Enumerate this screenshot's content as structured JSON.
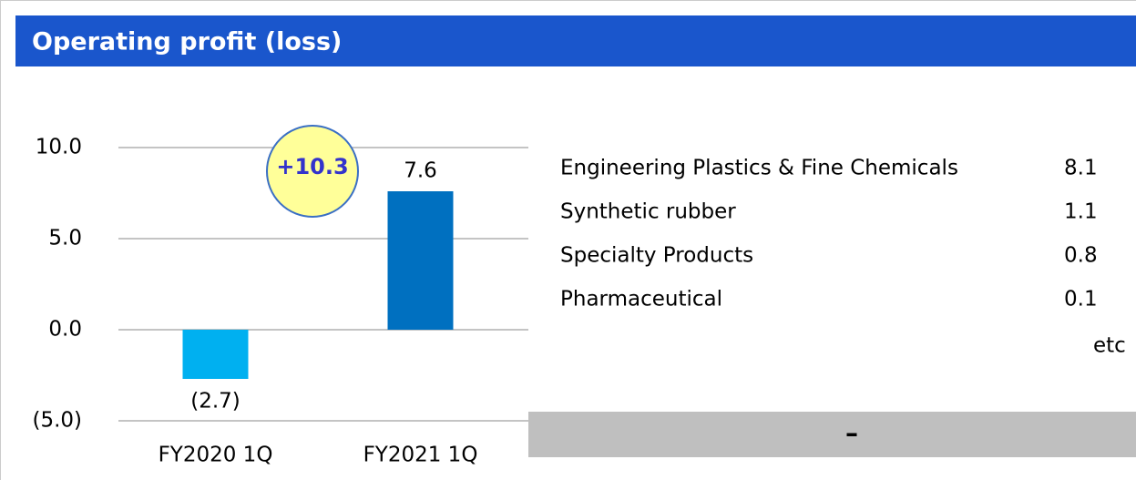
{
  "chart_data": {
    "type": "bar",
    "title": "Operating profit (loss)",
    "categories": [
      "FY2020 1Q",
      "FY2021 1Q"
    ],
    "values": [
      -2.7,
      7.6
    ],
    "value_labels": [
      "(2.7)",
      "7.6"
    ],
    "colors": [
      "#00b0f0",
      "#0070c0"
    ],
    "ylim": [
      -5,
      10
    ],
    "yticks": [
      {
        "value": -5,
        "label": "(5.0)"
      },
      {
        "value": 0,
        "label": "0.0"
      },
      {
        "value": 5,
        "label": "5.0"
      },
      {
        "value": 10,
        "label": "10.0"
      }
    ],
    "grid": true,
    "annotations": [
      "+10.3"
    ]
  },
  "breakdown": {
    "rows": [
      {
        "name": "Engineering Plastics & Fine Chemicals",
        "value": 8.1
      },
      {
        "name": "Synthetic rubber",
        "value": 1.1
      },
      {
        "name": "Specialty Products",
        "value": 0.8
      },
      {
        "name": "Pharmaceutical",
        "value": 0.1
      }
    ],
    "note": "etc"
  },
  "summary_bar": {
    "text": "–"
  }
}
